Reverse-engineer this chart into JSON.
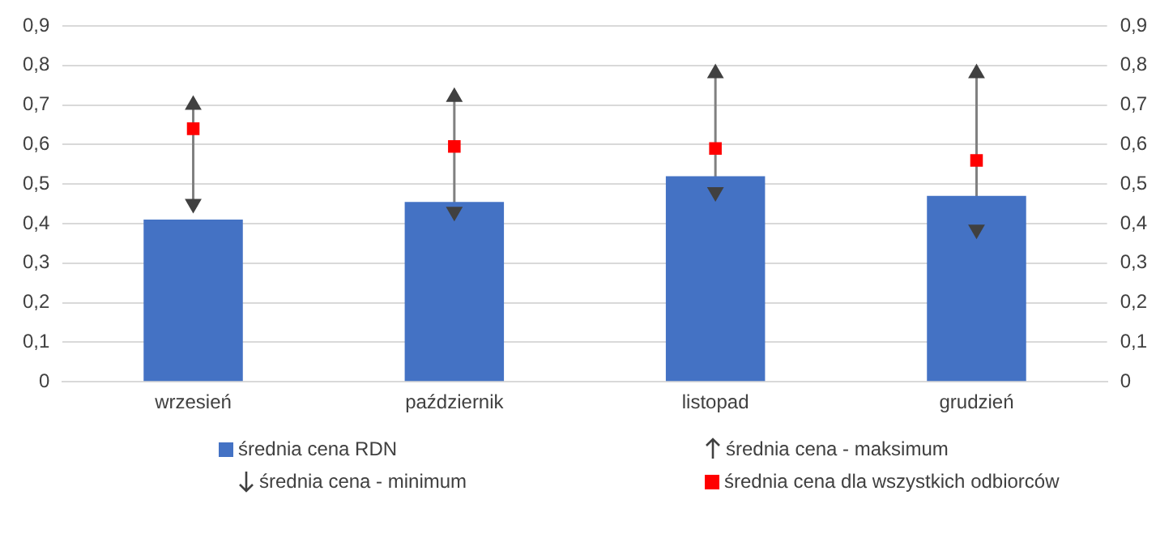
{
  "chart_data": {
    "type": "bar",
    "categories": [
      "wrzesień",
      "październik",
      "listopad",
      "grudzień"
    ],
    "series": [
      {
        "name": "średnia cena RDN",
        "color": "#4472c4",
        "values": [
          0.41,
          0.455,
          0.52,
          0.47
        ]
      },
      {
        "name": "średnia cena - maksimum",
        "type": "scatter",
        "marker": "triangle",
        "color": "#404040",
        "x": [
          "wrzesień",
          "październik",
          "listopad",
          "grudzień"
        ],
        "values": [
          0.7,
          0.72,
          0.78,
          0.78
        ]
      },
      {
        "name": "średnia cena - minimum",
        "type": "scatter",
        "marker": "triangle",
        "color": "#404040",
        "x": [
          "wrzesień",
          "październik",
          "listopad",
          "grudzień"
        ],
        "values": [
          0.45,
          0.43,
          0.48,
          0.385
        ]
      },
      {
        "name": "średnia cena dla wszystkich odbiorców",
        "type": "scatter",
        "marker": "square",
        "color": "#ff0000",
        "x": [
          "wrzesień",
          "październik",
          "listopad",
          "grudzień"
        ],
        "values": [
          0.64,
          0.595,
          0.59,
          0.56
        ]
      }
    ],
    "ylim": [
      0,
      0.9
    ],
    "yticks": [
      {
        "value": 0,
        "label": "0"
      },
      {
        "value": 0.1,
        "label": "0,1"
      },
      {
        "value": 0.2,
        "label": "0,2"
      },
      {
        "value": 0.3,
        "label": "0,3"
      },
      {
        "value": 0.4,
        "label": "0,4"
      },
      {
        "value": 0.5,
        "label": "0,5"
      },
      {
        "value": 0.6,
        "label": "0,6"
      },
      {
        "value": 0.7,
        "label": "0,7"
      },
      {
        "value": 0.8,
        "label": "0,8"
      },
      {
        "value": 0.9,
        "label": "0,9"
      }
    ],
    "y2lim": [
      0,
      0.9
    ],
    "y2ticks": [
      {
        "value": 0,
        "label": "0"
      },
      {
        "value": 0.1,
        "label": "0,1"
      },
      {
        "value": 0.2,
        "label": "0,2"
      },
      {
        "value": 0.3,
        "label": "0,3"
      },
      {
        "value": 0.4,
        "label": "0,4"
      },
      {
        "value": 0.5,
        "label": "0,5"
      },
      {
        "value": 0.6,
        "label": "0,6"
      },
      {
        "value": 0.7,
        "label": "0,7"
      },
      {
        "value": 0.8,
        "label": "0,8"
      },
      {
        "value": 0.9,
        "label": "0,9"
      }
    ],
    "grid": "y",
    "legend": "bottom"
  }
}
